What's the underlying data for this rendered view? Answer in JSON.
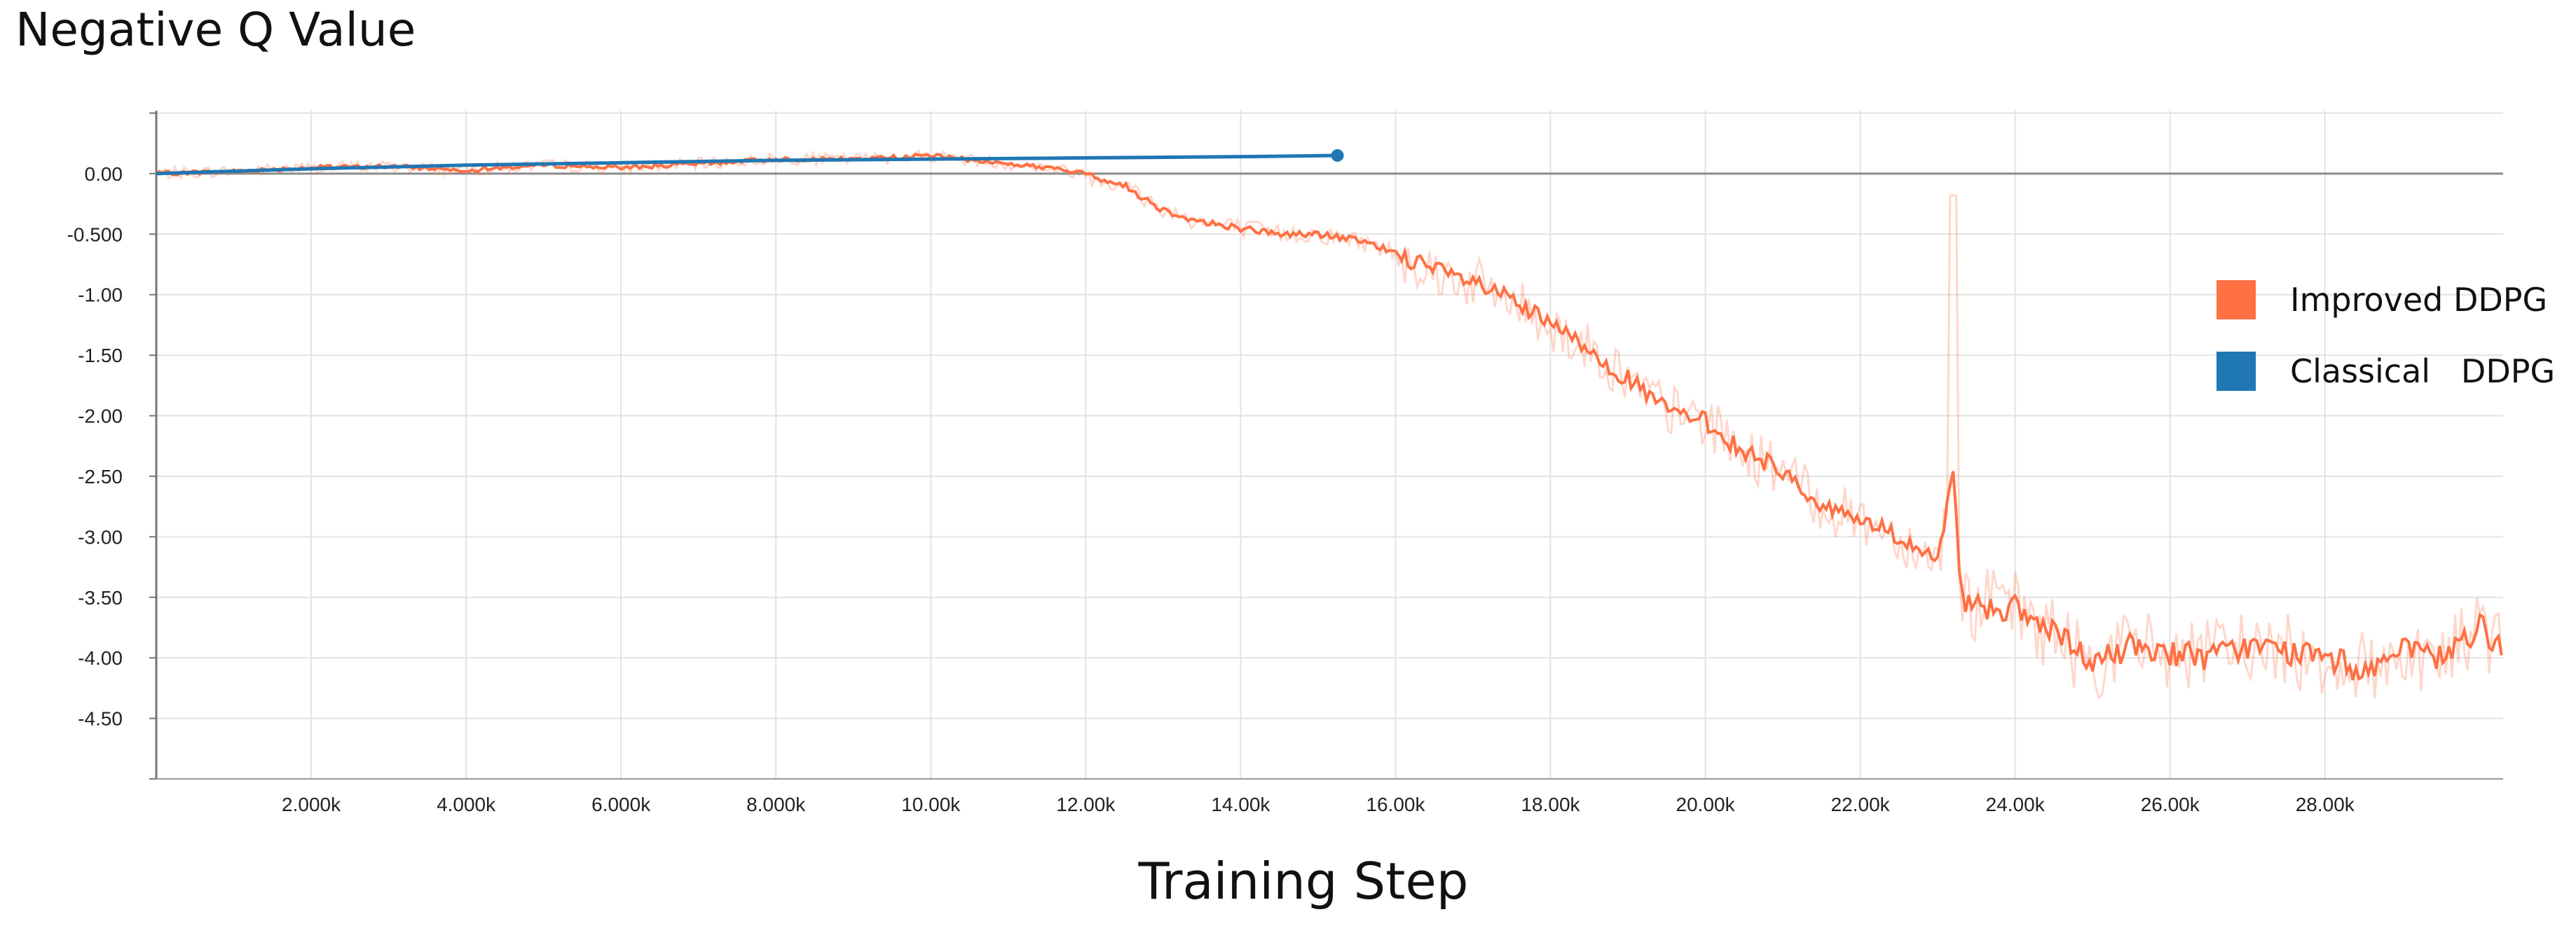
{
  "chart_data": {
    "type": "line",
    "title": "Negative Q Value",
    "xlabel": "Training Step",
    "ylabel": "",
    "xlim": [
      0,
      30300
    ],
    "ylim": [
      -5.0,
      0.52
    ],
    "x_ticks": [
      {
        "value": 2000,
        "label": "2.000k"
      },
      {
        "value": 4000,
        "label": "4.000k"
      },
      {
        "value": 6000,
        "label": "6.000k"
      },
      {
        "value": 8000,
        "label": "8.000k"
      },
      {
        "value": 10000,
        "label": "10.00k"
      },
      {
        "value": 12000,
        "label": "12.00k"
      },
      {
        "value": 14000,
        "label": "14.00k"
      },
      {
        "value": 16000,
        "label": "16.00k"
      },
      {
        "value": 18000,
        "label": "18.00k"
      },
      {
        "value": 20000,
        "label": "20.00k"
      },
      {
        "value": 22000,
        "label": "22.00k"
      },
      {
        "value": 24000,
        "label": "24.00k"
      },
      {
        "value": 26000,
        "label": "26.00k"
      },
      {
        "value": 28000,
        "label": "28.00k"
      }
    ],
    "y_ticks": [
      {
        "value": 0,
        "label": "0.00"
      },
      {
        "value": -0.5,
        "label": "-0.500"
      },
      {
        "value": -1.0,
        "label": "-1.00"
      },
      {
        "value": -1.5,
        "label": "-1.50"
      },
      {
        "value": -2.0,
        "label": "-2.00"
      },
      {
        "value": -2.5,
        "label": "-2.50"
      },
      {
        "value": -3.0,
        "label": "-3.00"
      },
      {
        "value": -3.5,
        "label": "-3.50"
      },
      {
        "value": -4.0,
        "label": "-4.00"
      },
      {
        "value": -4.5,
        "label": "-4.50"
      }
    ],
    "grid": true,
    "legend_position": "right",
    "series": [
      {
        "name": "Improved DDPG",
        "color": "#ff7043",
        "x": [
          0,
          1000,
          2000,
          3000,
          4000,
          5000,
          6000,
          7000,
          8000,
          9000,
          10000,
          11000,
          11500,
          12000,
          12500,
          13000,
          13500,
          14000,
          14500,
          15000,
          15500,
          16000,
          16500,
          17000,
          17500,
          18000,
          18500,
          19000,
          19500,
          20000,
          20500,
          21000,
          21500,
          22000,
          22500,
          23000,
          23200,
          23300,
          23400,
          24000,
          24500,
          25000,
          25500,
          26000,
          26500,
          27000,
          27500,
          28000,
          28500,
          29000,
          29500,
          30000,
          30300
        ],
        "y": [
          0.0,
          0.02,
          0.05,
          0.06,
          0.03,
          0.07,
          0.05,
          0.08,
          0.12,
          0.12,
          0.15,
          0.08,
          0.05,
          0.0,
          -0.1,
          -0.3,
          -0.4,
          -0.45,
          -0.5,
          -0.5,
          -0.55,
          -0.65,
          -0.8,
          -0.9,
          -1.05,
          -1.25,
          -1.45,
          -1.7,
          -1.95,
          -2.05,
          -2.3,
          -2.45,
          -2.75,
          -2.85,
          -3.0,
          -3.2,
          -2.5,
          -3.5,
          -3.55,
          -3.6,
          -3.8,
          -4.05,
          -3.9,
          -3.95,
          -4.0,
          -3.9,
          -3.95,
          -4.0,
          -4.1,
          -3.95,
          -4.0,
          -3.75,
          -3.9
        ]
      },
      {
        "name": "Classical   DDPG",
        "color": "#1f77b4",
        "x": [
          0,
          2000,
          4000,
          6000,
          8000,
          10000,
          12000,
          14000,
          15250
        ],
        "y": [
          0.0,
          0.04,
          0.07,
          0.09,
          0.11,
          0.12,
          0.13,
          0.14,
          0.15
        ]
      }
    ]
  }
}
